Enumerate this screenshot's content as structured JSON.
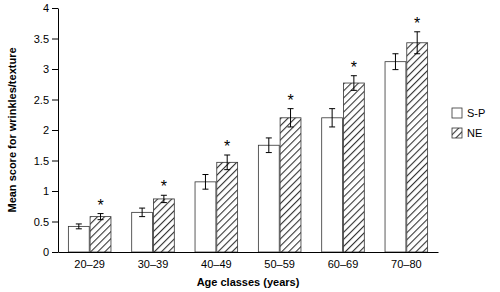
{
  "chart_data": {
    "type": "bar",
    "x_label": "Age classes (years)",
    "y_label": "Mean score for wrinkles/texture",
    "categories": [
      "20–29",
      "30–39",
      "40–49",
      "50–59",
      "60–69",
      "70–80"
    ],
    "series": [
      {
        "name": "S-P",
        "color": "#ffffff",
        "values": [
          0.42,
          0.65,
          1.15,
          1.75,
          2.2,
          3.12
        ],
        "errors": [
          0.04,
          0.07,
          0.12,
          0.12,
          0.15,
          0.13
        ]
      },
      {
        "name": "NE",
        "color": "#333333",
        "values": [
          0.58,
          0.87,
          1.47,
          2.2,
          2.77,
          3.43
        ],
        "errors": [
          0.05,
          0.06,
          0.12,
          0.15,
          0.12,
          0.18
        ]
      }
    ],
    "annotations": [
      "*",
      "*",
      "*",
      "*",
      "*",
      "*"
    ],
    "ylim": [
      0,
      4
    ],
    "yticks": [
      0,
      0.5,
      1,
      1.5,
      2,
      2.5,
      3,
      3.5,
      4
    ],
    "grid": false,
    "legend": "right"
  }
}
